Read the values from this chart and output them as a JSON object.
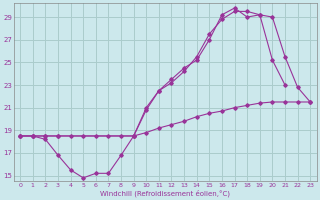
{
  "xlabel": "Windchill (Refroidissement éolien,°C)",
  "bg_color": "#cce8ec",
  "grid_color": "#aacccc",
  "line_color": "#993399",
  "xlim": [
    -0.5,
    23.5
  ],
  "ylim": [
    14.5,
    30.2
  ],
  "xticks": [
    0,
    1,
    2,
    3,
    4,
    5,
    6,
    7,
    8,
    9,
    10,
    11,
    12,
    13,
    14,
    15,
    16,
    17,
    18,
    19,
    20,
    21,
    22,
    23
  ],
  "yticks": [
    15,
    17,
    19,
    21,
    23,
    25,
    27,
    29
  ],
  "line1_x": [
    0,
    1,
    2,
    3,
    4,
    5,
    6,
    7,
    8,
    9,
    10,
    11,
    12,
    13,
    14,
    15,
    16,
    17,
    18,
    19,
    20,
    21,
    22,
    23
  ],
  "line1_y": [
    18.5,
    18.5,
    18.5,
    18.5,
    18.5,
    18.5,
    18.5,
    18.5,
    18.5,
    18.5,
    18.8,
    19.2,
    19.5,
    19.8,
    20.2,
    20.5,
    20.7,
    21.0,
    21.2,
    21.4,
    21.5,
    21.5,
    21.5,
    21.5
  ],
  "line2_x": [
    0,
    1,
    2,
    3,
    4,
    5,
    6,
    7,
    8,
    9,
    10,
    11,
    12,
    13,
    14,
    15,
    16,
    17,
    18,
    19,
    20,
    21
  ],
  "line2_y": [
    18.5,
    18.5,
    18.2,
    16.8,
    15.5,
    14.8,
    15.2,
    15.2,
    16.8,
    18.5,
    21.0,
    22.5,
    23.2,
    24.2,
    25.5,
    27.5,
    28.8,
    29.5,
    29.5,
    29.2,
    25.2,
    23.0
  ],
  "line3_x": [
    0,
    1,
    2,
    3,
    9,
    10,
    11,
    12,
    13,
    14,
    15,
    16,
    17,
    18,
    19,
    20,
    21,
    22,
    23
  ],
  "line3_y": [
    18.5,
    18.5,
    18.5,
    18.5,
    18.5,
    20.8,
    22.5,
    23.5,
    24.5,
    25.2,
    27.0,
    29.2,
    29.8,
    29.0,
    29.2,
    29.0,
    25.5,
    22.8,
    21.5
  ]
}
